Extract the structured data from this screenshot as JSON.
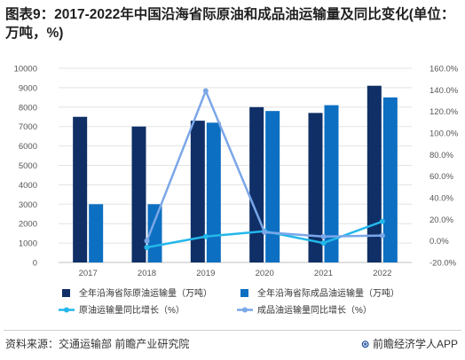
{
  "title": "图表9：2017-2022年中国沿海省际原油和成品油运输量及同比变化(单位：万吨，%)",
  "footer": {
    "source": "资料来源：交通运输部 前瞻产业研究院",
    "logo_symbol": "⊛",
    "brand": "前瞻经济学人APP"
  },
  "chart_data": {
    "type": "bar",
    "categories": [
      "2017",
      "2018",
      "2019",
      "2020",
      "2021",
      "2022"
    ],
    "y_left": {
      "lim": [
        0,
        10000
      ],
      "ticks": [
        "0",
        "1000",
        "2000",
        "3000",
        "4000",
        "5000",
        "6000",
        "7000",
        "8000",
        "9000",
        "10000"
      ]
    },
    "y_right": {
      "lim": [
        -20,
        160
      ],
      "ticks": [
        "-20.0%",
        "0.0%",
        "20.0%",
        "40.0%",
        "60.0%",
        "80.0%",
        "100.0%",
        "120.0%",
        "140.0%",
        "160.0%"
      ]
    },
    "grid": true,
    "legend_position": "bottom",
    "series": [
      {
        "name": "全年沿海省际原油运输量（万吨）",
        "kind": "bar",
        "axis": "left",
        "color": "#0f2f66",
        "values": [
          7500,
          7000,
          7300,
          8000,
          7700,
          9100
        ]
      },
      {
        "name": "全年沿海省际成品油运输量（万吨）",
        "kind": "bar",
        "axis": "left",
        "color": "#0d6fc1",
        "values": [
          3000,
          3000,
          7200,
          7800,
          8100,
          8500
        ]
      },
      {
        "name": "原油运输量同比增长（%）",
        "kind": "line",
        "axis": "right",
        "color": "#23b7ea",
        "values": [
          null,
          -6,
          4,
          9,
          -2,
          18
        ]
      },
      {
        "name": "成品油运输量同比增长（%）",
        "kind": "line",
        "axis": "right",
        "color": "#7ba7e8",
        "values": [
          null,
          0,
          139,
          8,
          4,
          5
        ]
      }
    ]
  }
}
